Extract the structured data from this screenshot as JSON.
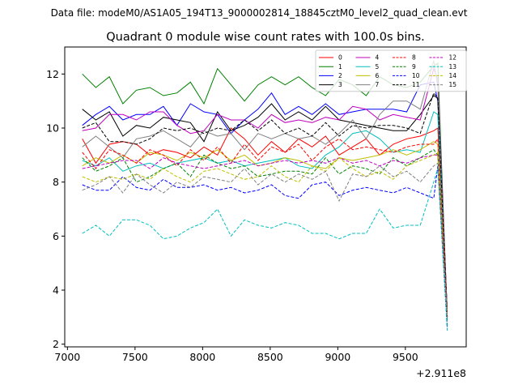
{
  "suptitle": "Data file: modeM0/AS1A05_194T13_9000002814_18845cztM0_level2_quad_clean.evt",
  "chart_data": {
    "type": "line",
    "title": "Quadrant 0 module wise count rates with 100.0s bins.",
    "xlabel": "",
    "ylabel": "",
    "x_offset_label": "+2.911e8",
    "xlim": [
      6980,
      9950
    ],
    "ylim": [
      1.9,
      13.0
    ],
    "xticks": [
      7000,
      7500,
      8000,
      8500,
      9000,
      9500
    ],
    "xtick_labels": [
      "7000",
      "7500",
      "8000",
      "8500",
      "9000",
      "9500"
    ],
    "yticks": [
      2,
      4,
      6,
      8,
      10,
      12
    ],
    "ytick_labels": [
      "2",
      "4",
      "6",
      "8",
      "10",
      "12"
    ],
    "grid": false,
    "legend_location": "upper right",
    "legend_columns": 4,
    "x": [
      7110,
      7210,
      7310,
      7410,
      7510,
      7610,
      7710,
      7810,
      7910,
      8010,
      8110,
      8210,
      8310,
      8410,
      8510,
      8610,
      8710,
      8810,
      8910,
      9010,
      9110,
      9210,
      9310,
      9410,
      9510,
      9610,
      9710,
      9740,
      9810
    ],
    "series": [
      {
        "name": "0",
        "color": "#ff0000",
        "dash": "solid",
        "values": [
          9.6,
          8.7,
          9.4,
          9.5,
          9.4,
          9.0,
          9.2,
          9.1,
          8.9,
          9.3,
          9.0,
          10.0,
          9.6,
          9.0,
          9.5,
          9.1,
          9.6,
          9.3,
          9.7,
          9.0,
          9.3,
          9.6,
          9.0,
          9.4,
          9.6,
          9.7,
          9.9,
          10.0,
          3.3
        ]
      },
      {
        "name": "1",
        "color": "#008000",
        "dash": "solid",
        "values": [
          12.0,
          11.5,
          11.9,
          10.9,
          11.4,
          11.5,
          11.2,
          11.3,
          11.7,
          10.9,
          12.2,
          11.6,
          11.0,
          11.6,
          11.9,
          11.6,
          11.9,
          11.5,
          11.2,
          11.8,
          11.6,
          11.2,
          11.9,
          11.6,
          11.5,
          11.7,
          12.3,
          12.4,
          3.0
        ]
      },
      {
        "name": "2",
        "color": "#0000ff",
        "dash": "solid",
        "values": [
          10.1,
          10.5,
          10.8,
          10.3,
          10.5,
          10.5,
          10.8,
          10.1,
          10.9,
          10.6,
          10.5,
          9.8,
          10.3,
          10.7,
          11.3,
          10.5,
          10.8,
          10.5,
          10.9,
          10.5,
          10.6,
          10.7,
          10.7,
          10.7,
          10.6,
          11.6,
          11.7,
          11.0,
          3.0
        ]
      },
      {
        "name": "3",
        "color": "#000000",
        "dash": "solid",
        "values": [
          10.7,
          10.3,
          10.6,
          9.7,
          10.1,
          10.0,
          10.4,
          10.3,
          10.2,
          9.5,
          10.6,
          9.9,
          10.1,
          10.4,
          10.9,
          10.3,
          10.6,
          10.3,
          10.8,
          10.3,
          10.2,
          10.1,
          10.0,
          9.9,
          9.9,
          10.5,
          11.2,
          11.1,
          3.2
        ]
      },
      {
        "name": "4",
        "color": "#bf00bf",
        "dash": "solid",
        "values": [
          9.9,
          10.0,
          10.5,
          10.5,
          10.3,
          10.6,
          10.6,
          10.1,
          9.8,
          9.9,
          10.5,
          10.3,
          10.3,
          10.0,
          10.5,
          10.2,
          10.3,
          10.2,
          10.4,
          10.3,
          10.8,
          10.7,
          10.3,
          10.5,
          10.4,
          10.3,
          12.2,
          11.8,
          3.1
        ]
      },
      {
        "name": "5",
        "color": "#00bfbf",
        "dash": "solid",
        "values": [
          8.8,
          8.6,
          8.9,
          8.4,
          8.6,
          8.7,
          8.5,
          8.7,
          8.8,
          8.9,
          8.7,
          8.8,
          8.6,
          8.7,
          8.8,
          8.9,
          8.6,
          8.5,
          9.0,
          9.3,
          9.8,
          9.9,
          9.6,
          9.1,
          9.2,
          9.1,
          10.6,
          10.5,
          2.9
        ]
      },
      {
        "name": "6",
        "color": "#bfbf00",
        "dash": "solid",
        "values": [
          8.6,
          8.9,
          8.7,
          9.0,
          8.7,
          9.1,
          9.0,
          8.8,
          9.1,
          8.9,
          9.2,
          8.8,
          9.0,
          8.6,
          8.7,
          8.9,
          8.8,
          8.6,
          8.5,
          8.9,
          8.8,
          8.9,
          9.0,
          9.2,
          9.0,
          9.2,
          9.5,
          9.4,
          3.2
        ]
      },
      {
        "name": "7",
        "color": "#808080",
        "dash": "solid",
        "values": [
          9.3,
          9.7,
          9.3,
          8.9,
          9.6,
          9.7,
          9.9,
          9.6,
          9.3,
          9.9,
          9.7,
          9.8,
          9.2,
          9.8,
          9.6,
          9.8,
          9.6,
          9.7,
          9.4,
          9.8,
          10.3,
          9.6,
          10.5,
          11.0,
          11.0,
          10.7,
          12.5,
          11.5,
          3.0
        ]
      },
      {
        "name": "8",
        "color": "#ff0000",
        "dash": "dashed",
        "values": [
          9.1,
          8.5,
          9.2,
          9.0,
          8.7,
          9.2,
          9.0,
          8.6,
          9.2,
          8.8,
          9.3,
          8.7,
          9.4,
          8.8,
          9.3,
          9.1,
          9.4,
          8.8,
          9.3,
          9.6,
          9.2,
          9.3,
          9.2,
          9.1,
          9.3,
          9.4,
          9.4,
          9.6,
          3.0
        ]
      },
      {
        "name": "9",
        "color": "#008000",
        "dash": "dashed",
        "values": [
          8.9,
          8.4,
          8.6,
          8.9,
          8.0,
          8.2,
          8.5,
          8.7,
          8.2,
          9.0,
          8.7,
          8.5,
          8.6,
          8.2,
          8.3,
          8.4,
          8.4,
          8.3,
          8.9,
          8.3,
          8.6,
          8.5,
          8.3,
          8.9,
          8.6,
          8.9,
          9.2,
          9.0,
          2.7
        ]
      },
      {
        "name": "10",
        "color": "#0000ff",
        "dash": "dashed",
        "values": [
          7.9,
          7.7,
          7.7,
          8.2,
          7.8,
          7.7,
          8.1,
          7.8,
          7.8,
          7.9,
          7.7,
          7.8,
          7.6,
          7.7,
          7.9,
          7.5,
          7.4,
          7.9,
          8.0,
          7.5,
          7.7,
          7.8,
          7.7,
          7.6,
          7.8,
          7.6,
          7.4,
          8.6,
          2.6
        ]
      },
      {
        "name": "11",
        "color": "#000000",
        "dash": "dashed",
        "values": [
          10.0,
          10.2,
          9.5,
          9.5,
          9.4,
          9.6,
          10.0,
          9.9,
          10.0,
          9.8,
          10.0,
          9.9,
          10.3,
          9.9,
          10.3,
          9.8,
          10.0,
          9.7,
          10.2,
          9.7,
          10.1,
          10.0,
          10.1,
          10.1,
          10.0,
          9.8,
          11.3,
          11.1,
          3.0
        ]
      },
      {
        "name": "12",
        "color": "#bf00bf",
        "dash": "dashed",
        "values": [
          8.5,
          8.6,
          8.7,
          8.8,
          8.8,
          8.5,
          8.9,
          8.7,
          8.6,
          8.5,
          8.6,
          8.7,
          8.8,
          8.6,
          8.7,
          8.8,
          8.7,
          8.8,
          8.7,
          8.9,
          8.7,
          8.8,
          8.6,
          8.8,
          8.7,
          8.9,
          9.0,
          9.0,
          3.0
        ]
      },
      {
        "name": "13",
        "color": "#00bfbf",
        "dash": "dashed",
        "values": [
          6.1,
          6.4,
          6.0,
          6.6,
          6.6,
          6.4,
          5.9,
          6.0,
          6.3,
          6.5,
          7.0,
          6.0,
          6.6,
          6.4,
          6.3,
          6.5,
          6.4,
          6.1,
          6.1,
          5.9,
          6.1,
          6.1,
          7.0,
          6.3,
          6.4,
          6.4,
          8.0,
          8.5,
          2.5
        ]
      },
      {
        "name": "14",
        "color": "#bfbf00",
        "dash": "dashed",
        "values": [
          8.2,
          8.0,
          8.2,
          8.1,
          8.3,
          8.1,
          8.5,
          8.2,
          8.0,
          8.4,
          8.5,
          8.3,
          8.1,
          8.2,
          8.6,
          8.2,
          8.0,
          8.6,
          8.4,
          8.9,
          8.5,
          8.2,
          8.4,
          8.1,
          8.6,
          8.8,
          9.0,
          9.1,
          3.0
        ]
      },
      {
        "name": "15",
        "color": "#808080",
        "dash": "dashed",
        "values": [
          7.7,
          7.9,
          8.2,
          7.6,
          8.3,
          7.9,
          7.6,
          8.0,
          7.8,
          8.2,
          8.1,
          8.0,
          8.5,
          7.9,
          8.3,
          8.0,
          8.3,
          8.1,
          8.4,
          7.3,
          8.3,
          8.2,
          8.6,
          8.2,
          8.4,
          8.0,
          8.6,
          8.7,
          3.0
        ]
      }
    ]
  }
}
